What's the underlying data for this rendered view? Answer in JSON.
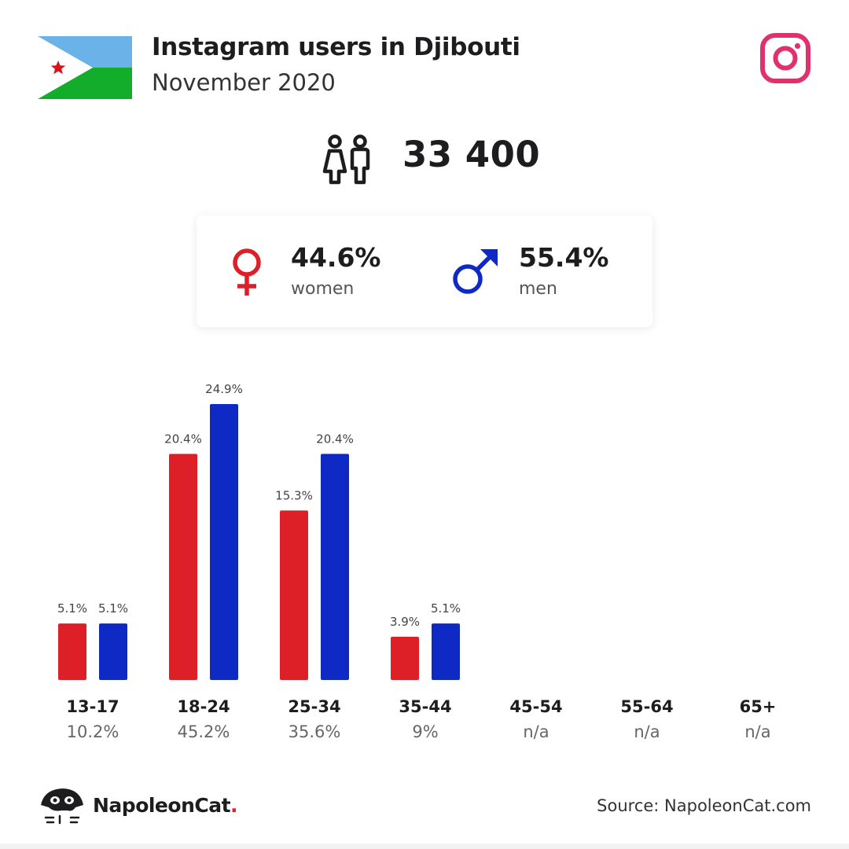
{
  "header": {
    "title": "Instagram users in Djibouti",
    "subtitle": "November 2020"
  },
  "colors": {
    "women": "#dd2028",
    "men": "#0f2ac4",
    "instagram": "#e1306c",
    "flag_blue": "#6ab2e7",
    "flag_green": "#12ad2b",
    "flag_star": "#d7141a"
  },
  "icons": {
    "flag": "djibouti-flag-icon",
    "brand": "instagram-icon",
    "users": "people-icon",
    "women": "female-symbol-icon",
    "men": "male-symbol-icon",
    "logo": "napoleoncat-logo-icon"
  },
  "summary": {
    "total_users": "33 400",
    "women_pct": "44.6%",
    "women_label": "women",
    "men_pct": "55.4%",
    "men_label": "men"
  },
  "chart_data": {
    "type": "bar",
    "categories": [
      "13-17",
      "18-24",
      "25-34",
      "35-44",
      "45-54",
      "55-64",
      "65+"
    ],
    "category_totals": [
      "10.2%",
      "45.2%",
      "35.6%",
      "9%",
      "n/a",
      "n/a",
      "n/a"
    ],
    "series": [
      {
        "name": "women",
        "values": [
          5.1,
          20.4,
          15.3,
          3.9,
          null,
          null,
          null
        ],
        "labels": [
          "5.1%",
          "20.4%",
          "15.3%",
          "3.9%",
          null,
          null,
          null
        ],
        "color": "#dd2028"
      },
      {
        "name": "men",
        "values": [
          5.1,
          24.9,
          20.4,
          5.1,
          null,
          null,
          null
        ],
        "labels": [
          "5.1%",
          "24.9%",
          "20.4%",
          "5.1%",
          null,
          null,
          null
        ],
        "color": "#0f2ac4"
      }
    ],
    "title": "",
    "xlabel": "",
    "ylabel": "",
    "ylim": [
      0,
      24.9
    ],
    "grid": false,
    "legend": "none"
  },
  "footer": {
    "brand_name": "NapoleonCat",
    "brand_dot": ".",
    "source": "Source: NapoleonCat.com"
  }
}
